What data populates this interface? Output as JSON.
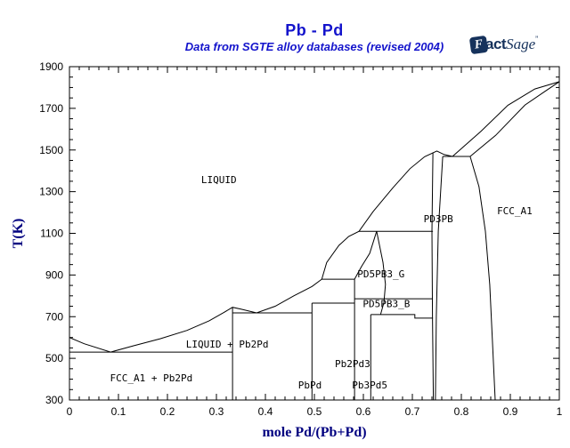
{
  "header": {
    "title": "Pb - Pd",
    "subtitle": "Data from SGTE alloy databases (revised 2004)",
    "logo": {
      "f": "F",
      "act": "act",
      "sage": "Sage",
      "mark": "”"
    }
  },
  "colors": {
    "title": "#1414cc",
    "subtitle": "#1414cc",
    "axis_title": "#000080",
    "line": "#000000",
    "tick_label": "#000000",
    "logo": "#16325c",
    "background": "#ffffff"
  },
  "chart_data": {
    "type": "line",
    "subtype": "binary-phase-diagram",
    "title": "Pb - Pd",
    "subtitle": "Data from SGTE alloy databases (revised 2004)",
    "xlabel": "mole Pd/(Pb+Pd)",
    "ylabel": "T(K)",
    "xlim": [
      0,
      1
    ],
    "ylim": [
      300,
      1900
    ],
    "grid": false,
    "x_major_tick_step": 0.1,
    "x_minor_tick_step": 0.02,
    "y_major_tick_step": 200,
    "y_minor_tick_step": 50,
    "x_tick_labels": [
      "0",
      "0.1",
      "0.2",
      "0.3",
      "0.4",
      "0.5",
      "0.6",
      "0.7",
      "0.8",
      "0.9",
      "1"
    ],
    "y_tick_labels": [
      "300",
      "500",
      "700",
      "900",
      "1100",
      "1300",
      "1500",
      "1700",
      "1900"
    ],
    "boundaries": [
      {
        "name": "liquidus",
        "points": [
          [
            0,
            600
          ],
          [
            0.03,
            570
          ],
          [
            0.084,
            530
          ],
          [
            0.13,
            560
          ],
          [
            0.185,
            594
          ],
          [
            0.24,
            634
          ],
          [
            0.285,
            680
          ],
          [
            0.315,
            720
          ],
          [
            0.333,
            745
          ],
          [
            0.35,
            736
          ],
          [
            0.382,
            718
          ],
          [
            0.42,
            750
          ],
          [
            0.458,
            800
          ],
          [
            0.495,
            845
          ],
          [
            0.515,
            880
          ],
          [
            0.525,
            960
          ],
          [
            0.55,
            1042
          ],
          [
            0.57,
            1085
          ],
          [
            0.591,
            1110
          ],
          [
            0.62,
            1205
          ],
          [
            0.66,
            1318
          ],
          [
            0.695,
            1410
          ],
          [
            0.725,
            1468
          ],
          [
            0.75,
            1495
          ],
          [
            0.765,
            1478
          ],
          [
            0.782,
            1469
          ],
          [
            0.84,
            1590
          ],
          [
            0.895,
            1715
          ],
          [
            0.95,
            1793
          ],
          [
            1,
            1828
          ]
        ]
      },
      {
        "name": "fcc-solidus",
        "points": [
          [
            0.818,
            1469
          ],
          [
            0.87,
            1570
          ],
          [
            0.93,
            1716
          ],
          [
            0.97,
            1780
          ],
          [
            1,
            1828
          ]
        ]
      },
      {
        "name": "fcc-solvus",
        "points": [
          [
            0.818,
            1469
          ],
          [
            0.836,
            1324
          ],
          [
            0.849,
            1110
          ],
          [
            0.858,
            854
          ],
          [
            0.864,
            556
          ],
          [
            0.869,
            300
          ]
        ]
      },
      {
        "name": "pd3pb-left-boundary",
        "points": [
          [
            0.742,
            1488
          ],
          [
            0.74,
            1110
          ],
          [
            0.741,
            700
          ],
          [
            0.743,
            300
          ]
        ]
      },
      {
        "name": "pd3pb-right-boundary",
        "points": [
          [
            0.762,
            1469
          ],
          [
            0.753,
            1110
          ],
          [
            0.749,
            700
          ],
          [
            0.747,
            300
          ]
        ]
      },
      {
        "name": "pb2pd-compound-line",
        "points": [
          [
            0.333,
            745
          ],
          [
            0.333,
            300
          ]
        ]
      },
      {
        "name": "pbpd-compound-line",
        "points": [
          [
            0.495,
            765
          ],
          [
            0.495,
            300
          ]
        ]
      },
      {
        "name": "pb2pd3-compound-line",
        "points": [
          [
            0.582,
            880
          ],
          [
            0.582,
            300
          ]
        ]
      },
      {
        "name": "pb3pd5-compound-line",
        "points": [
          [
            0.615,
            710
          ],
          [
            0.615,
            300
          ]
        ]
      },
      {
        "name": "pd5pb3g-left-boundary",
        "points": [
          [
            0.627,
            1110
          ],
          [
            0.613,
            1004
          ],
          [
            0.596,
            940
          ],
          [
            0.582,
            880
          ]
        ]
      },
      {
        "name": "pd5pb3g-right-boundary",
        "points": [
          [
            0.627,
            1110
          ],
          [
            0.64,
            961
          ],
          [
            0.645,
            855
          ],
          [
            0.642,
            769
          ],
          [
            0.635,
            710
          ]
        ]
      },
      {
        "name": "eutectic-530K",
        "points": [
          [
            0,
            530
          ],
          [
            0.333,
            530
          ]
        ]
      },
      {
        "name": "eutectic-718K",
        "points": [
          [
            0.333,
            718
          ],
          [
            0.495,
            718
          ]
        ]
      },
      {
        "name": "invariant-765K",
        "points": [
          [
            0.495,
            765
          ],
          [
            0.582,
            765
          ]
        ]
      },
      {
        "name": "invariant-880K",
        "points": [
          [
            0.515,
            880
          ],
          [
            0.582,
            880
          ]
        ]
      },
      {
        "name": "invariant-1110K",
        "points": [
          [
            0.591,
            1110
          ],
          [
            0.742,
            1110
          ]
        ]
      },
      {
        "name": "eutectic-1469K",
        "points": [
          [
            0.762,
            1469
          ],
          [
            0.818,
            1469
          ]
        ]
      },
      {
        "name": "pd5pb3b-top",
        "points": [
          [
            0.582,
            786
          ],
          [
            0.742,
            786
          ]
        ]
      },
      {
        "name": "pd5pb3b-bottom",
        "points": [
          [
            0.615,
            710
          ],
          [
            0.705,
            710
          ],
          [
            0.705,
            693
          ],
          [
            0.742,
            693
          ]
        ]
      }
    ],
    "region_labels": [
      {
        "text": "LIQUID",
        "x": 0.305,
        "T": 1358
      },
      {
        "text": "FCC_A1",
        "x": 0.909,
        "T": 1209
      },
      {
        "text": "PD3PB",
        "x": 0.753,
        "T": 1170
      },
      {
        "text": "PD5PB3_G",
        "x": 0.636,
        "T": 906
      },
      {
        "text": "PD5PB3_B",
        "x": 0.647,
        "T": 762
      },
      {
        "text": "Pb2Pd3",
        "x": 0.578,
        "T": 475
      },
      {
        "text": "Pb3Pd5",
        "x": 0.613,
        "T": 372
      },
      {
        "text": "PbPd",
        "x": 0.491,
        "T": 372
      },
      {
        "text": "LIQUID + Pb2Pd",
        "x": 0.322,
        "T": 569
      },
      {
        "text": "FCC_A1 + Pb2Pd",
        "x": 0.167,
        "T": 407
      }
    ]
  }
}
